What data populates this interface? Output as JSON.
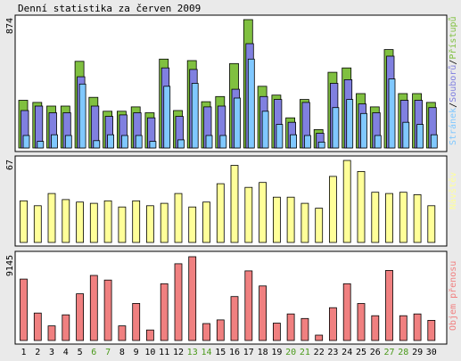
{
  "title": "Denní statistika za červen 2009",
  "colors": {
    "page_background": "#eaeaea",
    "panel_background": "#ffffff",
    "weekday_label": "#000000",
    "weekend_label": "#4a9a1a",
    "hits": "#80c040",
    "files": "#8080e0",
    "pages": "#80c8ff",
    "visits": "#ffff99",
    "traffic": "#f08080",
    "bar_outline": "#000000"
  },
  "legend": {
    "hits": "Přístupů",
    "files": "Souborů",
    "pages": "Stránek",
    "sep": "/",
    "visits": "Návštěv",
    "traffic": "Objem přenosu"
  },
  "chart_data": [
    {
      "type": "bar",
      "panel": "top",
      "ymax_label": "874",
      "ylim": [
        0,
        874
      ],
      "categories": [
        "1",
        "2",
        "3",
        "4",
        "5",
        "6",
        "7",
        "8",
        "9",
        "10",
        "11",
        "12",
        "13",
        "14",
        "15",
        "16",
        "17",
        "18",
        "19",
        "20",
        "21",
        "22",
        "23",
        "24",
        "25",
        "26",
        "27",
        "28",
        "29",
        "30"
      ],
      "series": [
        {
          "name": "Přístupů",
          "values": [
            325,
            310,
            285,
            285,
            590,
            345,
            250,
            250,
            280,
            240,
            605,
            255,
            595,
            315,
            350,
            575,
            874,
            420,
            360,
            205,
            330,
            125,
            515,
            545,
            370,
            280,
            670,
            370,
            370,
            310
          ]
        },
        {
          "name": "Souborů",
          "values": [
            255,
            285,
            240,
            240,
            485,
            285,
            215,
            225,
            240,
            205,
            545,
            215,
            535,
            280,
            285,
            400,
            710,
            350,
            330,
            175,
            310,
            100,
            440,
            465,
            300,
            240,
            625,
            325,
            325,
            275
          ]
        },
        {
          "name": "Stránek",
          "values": [
            85,
            45,
            90,
            85,
            435,
            50,
            90,
            85,
            85,
            45,
            420,
            55,
            440,
            85,
            85,
            340,
            605,
            250,
            160,
            90,
            85,
            40,
            275,
            330,
            235,
            85,
            470,
            175,
            160,
            90
          ]
        }
      ]
    },
    {
      "type": "bar",
      "panel": "middle",
      "ymax_label": "67",
      "ylim": [
        0,
        67
      ],
      "categories": [
        "1",
        "2",
        "3",
        "4",
        "5",
        "6",
        "7",
        "8",
        "9",
        "10",
        "11",
        "12",
        "13",
        "14",
        "15",
        "16",
        "17",
        "18",
        "19",
        "20",
        "21",
        "22",
        "23",
        "24",
        "25",
        "26",
        "27",
        "28",
        "29",
        "30"
      ],
      "series": [
        {
          "name": "Návštěv",
          "values": [
            34,
            30,
            40,
            35,
            33,
            32,
            34,
            29,
            34,
            30,
            32,
            40,
            29,
            33,
            48,
            63,
            45,
            49,
            37,
            37,
            32,
            28,
            54,
            67,
            58,
            41,
            40,
            41,
            39,
            30
          ]
        }
      ]
    },
    {
      "type": "bar",
      "panel": "bottom",
      "ymax_label": "9145",
      "ylim": [
        0,
        9145
      ],
      "categories": [
        "1",
        "2",
        "3",
        "4",
        "5",
        "6",
        "7",
        "8",
        "9",
        "10",
        "11",
        "12",
        "13",
        "14",
        "15",
        "16",
        "17",
        "18",
        "19",
        "20",
        "21",
        "22",
        "23",
        "24",
        "25",
        "26",
        "27",
        "28",
        "29",
        "30"
      ],
      "series": [
        {
          "name": "Objem přenosu",
          "values": [
            6700,
            3000,
            1600,
            2800,
            5100,
            7100,
            6600,
            1600,
            4050,
            1150,
            6200,
            8380,
            9145,
            1850,
            2250,
            4800,
            7600,
            5950,
            1900,
            2900,
            2400,
            580,
            3580,
            6200,
            4040,
            2700,
            7650,
            2700,
            2900,
            2200
          ]
        }
      ]
    }
  ],
  "days": [
    {
      "label": "1",
      "weekend": false
    },
    {
      "label": "2",
      "weekend": false
    },
    {
      "label": "3",
      "weekend": false
    },
    {
      "label": "4",
      "weekend": false
    },
    {
      "label": "5",
      "weekend": false
    },
    {
      "label": "6",
      "weekend": true
    },
    {
      "label": "7",
      "weekend": true
    },
    {
      "label": "8",
      "weekend": false
    },
    {
      "label": "9",
      "weekend": false
    },
    {
      "label": "10",
      "weekend": false
    },
    {
      "label": "11",
      "weekend": false
    },
    {
      "label": "12",
      "weekend": false
    },
    {
      "label": "13",
      "weekend": true
    },
    {
      "label": "14",
      "weekend": true
    },
    {
      "label": "15",
      "weekend": false
    },
    {
      "label": "16",
      "weekend": false
    },
    {
      "label": "17",
      "weekend": false
    },
    {
      "label": "18",
      "weekend": false
    },
    {
      "label": "19",
      "weekend": false
    },
    {
      "label": "20",
      "weekend": true
    },
    {
      "label": "21",
      "weekend": true
    },
    {
      "label": "22",
      "weekend": false
    },
    {
      "label": "23",
      "weekend": false
    },
    {
      "label": "24",
      "weekend": false
    },
    {
      "label": "25",
      "weekend": false
    },
    {
      "label": "26",
      "weekend": false
    },
    {
      "label": "27",
      "weekend": true
    },
    {
      "label": "28",
      "weekend": true
    },
    {
      "label": "29",
      "weekend": false
    },
    {
      "label": "30",
      "weekend": false
    }
  ]
}
